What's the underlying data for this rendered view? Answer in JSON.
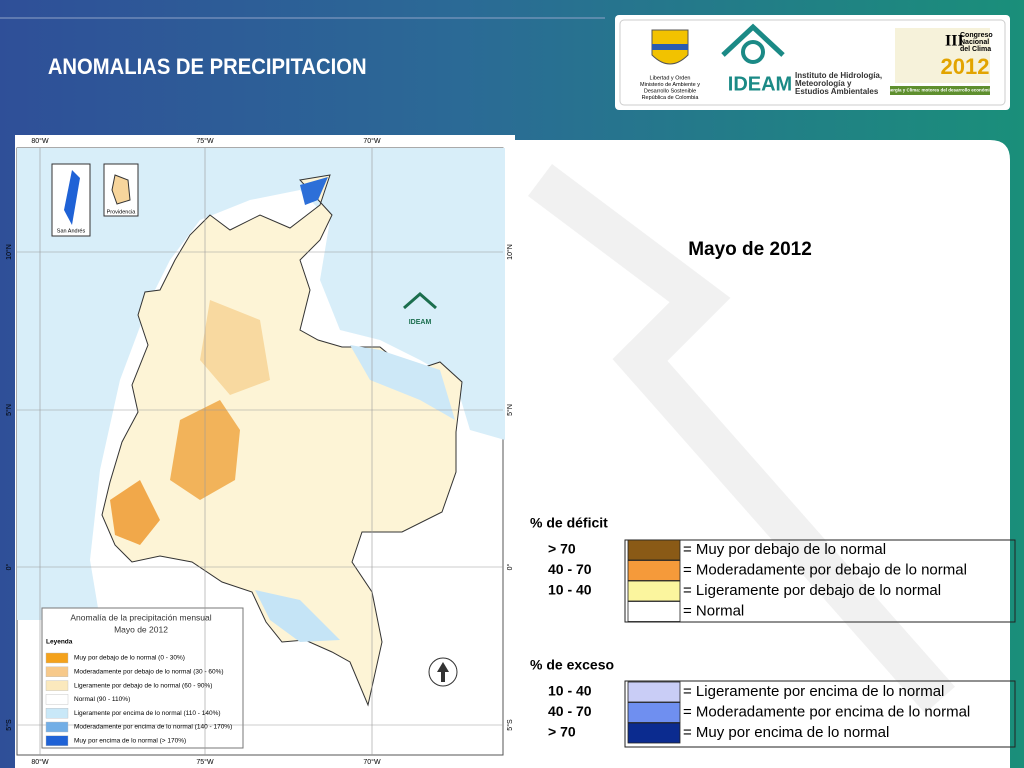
{
  "header": {
    "title": "ANOMALIAS DE PRECIPITACION",
    "logo_texts": [
      "Libertad y Orden",
      "Ministerio de Ambiente y",
      "Desarrollo Sostenible",
      "República de Colombia"
    ],
    "ideam": {
      "name": "IDEAM",
      "full_name": [
        "Instituto de Hidrología,",
        "Meteorología y",
        "Estudios Ambientales"
      ]
    },
    "congress": {
      "lines": [
        "Congreso",
        "Nacional",
        "del Clima"
      ],
      "year": "2012",
      "numeral": "III",
      "slogan": "Energía y Clima: motores del desarrollo económico"
    }
  },
  "map": {
    "lon_labels": [
      "80°W",
      "75°W",
      "70°W"
    ],
    "lat_labels": [
      "10°N",
      "5°N",
      "0°",
      "5°S"
    ],
    "insets": [
      "San Andrés",
      "Providencia"
    ],
    "logo": "IDEAM",
    "legend": {
      "title": "Anomalía de la precipitación mensual",
      "subtitle": "Mayo de 2012",
      "heading": "Leyenda",
      "items": [
        {
          "label": "Muy por debajo de lo normal (0 - 30%)",
          "color": "#f4a21c"
        },
        {
          "label": "Moderadamente por debajo de lo normal (30 - 60%)",
          "color": "#f7c98a"
        },
        {
          "label": "Ligeramente por debajo de lo normal (60 - 90%)",
          "color": "#fbe9bd"
        },
        {
          "label": "Normal (90 - 110%)",
          "color": "#ffffff"
        },
        {
          "label": "Ligeramente por encima de lo normal (110 - 140%)",
          "color": "#c9e8f8"
        },
        {
          "label": "Moderadamente por encima de lo normal (140 - 170%)",
          "color": "#72aee6"
        },
        {
          "label": "Muy por encima de lo normal (> 170%)",
          "color": "#1f62d6"
        }
      ]
    }
  },
  "panel": {
    "title": "Mayo de 2012",
    "deficit": {
      "heading": "% de déficit",
      "rows": [
        {
          "range": "> 70",
          "color": "#8a5a16",
          "label": "= Muy por debajo de lo normal"
        },
        {
          "range": "40 -  70",
          "color": "#f59a3a",
          "label": "= Moderadamente por debajo de lo normal"
        },
        {
          "range": "10 -  40",
          "color": "#fbf59e",
          "label": "= Ligeramente por debajo de lo normal"
        },
        {
          "range": null,
          "color": "#ffffff",
          "label": "= Normal"
        }
      ]
    },
    "excess": {
      "heading": "% de exceso",
      "rows": [
        {
          "range": "10 -  40",
          "color": "#c9cdf6",
          "label": "= Ligeramente por encima de lo normal"
        },
        {
          "range": "40 -  70",
          "color": "#6f8ff0",
          "label": "= Moderadamente por encima de lo normal"
        },
        {
          "range": "> 70",
          "color": "#0b2b8f",
          "label": "= Muy por encima de lo normal"
        }
      ]
    }
  }
}
